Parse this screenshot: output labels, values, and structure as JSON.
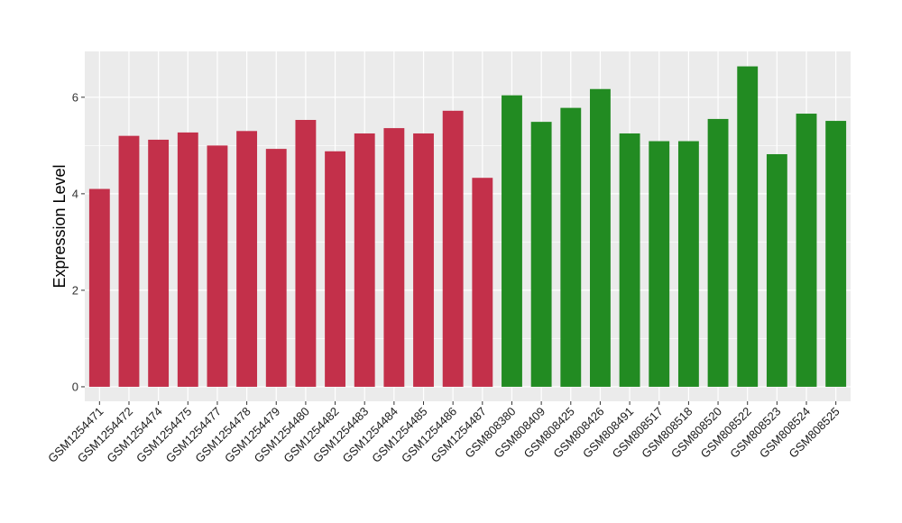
{
  "chart_data": {
    "type": "bar",
    "title": "",
    "xlabel": "",
    "ylabel": "Expression Level",
    "ylim": [
      -0.3,
      6.95
    ],
    "yticks": [
      0,
      2,
      4,
      6
    ],
    "grid": true,
    "legend": "none",
    "categories": [
      "GSM1254471",
      "GSM1254472",
      "GSM1254474",
      "GSM1254475",
      "GSM1254477",
      "GSM1254478",
      "GSM1254479",
      "GSM1254480",
      "GSM1254482",
      "GSM1254483",
      "GSM1254484",
      "GSM1254485",
      "GSM1254486",
      "GSM1254487",
      "GSM808380",
      "GSM808409",
      "GSM808425",
      "GSM808426",
      "GSM808491",
      "GSM808517",
      "GSM808518",
      "GSM808520",
      "GSM808522",
      "GSM808523",
      "GSM808524",
      "GSM808525"
    ],
    "values": [
      4.1,
      5.2,
      5.12,
      5.27,
      5.0,
      5.3,
      4.93,
      5.53,
      4.88,
      5.25,
      5.36,
      5.25,
      5.72,
      4.33,
      6.04,
      5.49,
      5.78,
      6.17,
      5.25,
      5.09,
      5.09,
      5.55,
      6.64,
      4.82,
      5.66,
      5.51
    ],
    "groups": [
      "a",
      "a",
      "a",
      "a",
      "a",
      "a",
      "a",
      "a",
      "a",
      "a",
      "a",
      "a",
      "a",
      "a",
      "b",
      "b",
      "b",
      "b",
      "b",
      "b",
      "b",
      "b",
      "b",
      "b",
      "b",
      "b"
    ],
    "colors": {
      "a": "#c3304a",
      "b": "#228b22"
    },
    "panel_background": "#ebebeb",
    "grid_color": "#ffffff"
  }
}
